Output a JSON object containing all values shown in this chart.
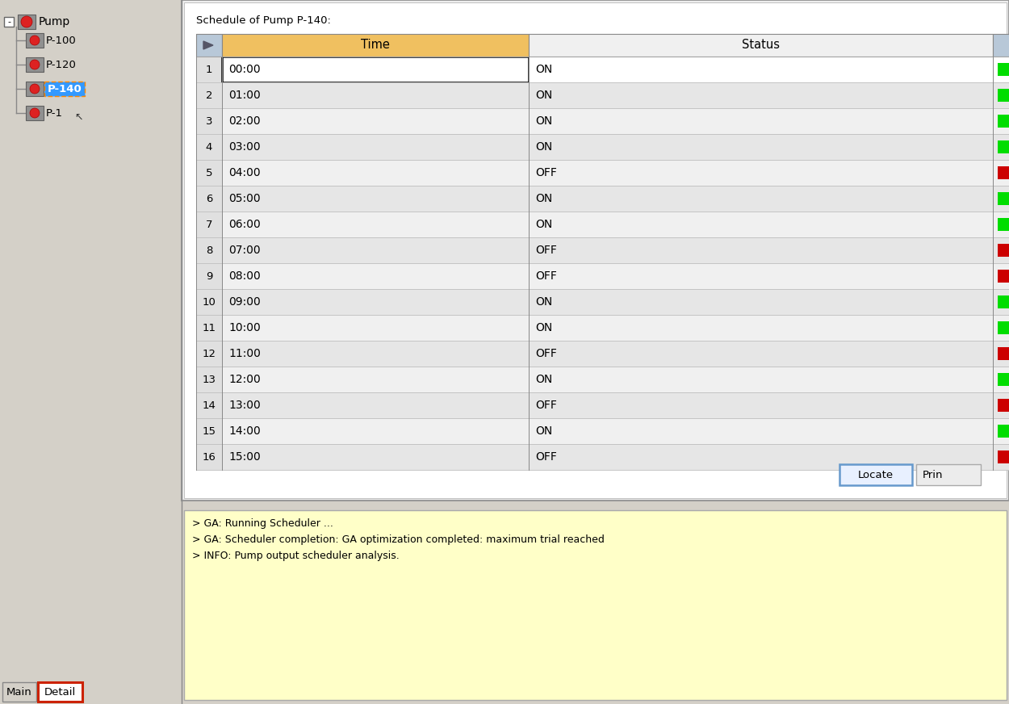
{
  "title": "Schedule of Pump P-140:",
  "rows": [
    {
      "num": 1,
      "time": "00:00",
      "status": "ON",
      "color": "green"
    },
    {
      "num": 2,
      "time": "01:00",
      "status": "ON",
      "color": "green"
    },
    {
      "num": 3,
      "time": "02:00",
      "status": "ON",
      "color": "green"
    },
    {
      "num": 4,
      "time": "03:00",
      "status": "ON",
      "color": "green"
    },
    {
      "num": 5,
      "time": "04:00",
      "status": "OFF",
      "color": "red"
    },
    {
      "num": 6,
      "time": "05:00",
      "status": "ON",
      "color": "green"
    },
    {
      "num": 7,
      "time": "06:00",
      "status": "ON",
      "color": "green"
    },
    {
      "num": 8,
      "time": "07:00",
      "status": "OFF",
      "color": "red"
    },
    {
      "num": 9,
      "time": "08:00",
      "status": "OFF",
      "color": "red"
    },
    {
      "num": 10,
      "time": "09:00",
      "status": "ON",
      "color": "green"
    },
    {
      "num": 11,
      "time": "10:00",
      "status": "ON",
      "color": "green"
    },
    {
      "num": 12,
      "time": "11:00",
      "status": "OFF",
      "color": "red"
    },
    {
      "num": 13,
      "time": "12:00",
      "status": "ON",
      "color": "green"
    },
    {
      "num": 14,
      "time": "13:00",
      "status": "OFF",
      "color": "red"
    },
    {
      "num": 15,
      "time": "14:00",
      "status": "ON",
      "color": "green"
    },
    {
      "num": 16,
      "time": "15:00",
      "status": "OFF",
      "color": "red"
    }
  ],
  "tree_items": [
    {
      "label": "Pump",
      "level": 0,
      "selected": false
    },
    {
      "label": "P-100",
      "level": 1,
      "selected": false
    },
    {
      "label": "P-120",
      "level": 1,
      "selected": false
    },
    {
      "label": "P-140",
      "level": 1,
      "selected": true
    },
    {
      "label": "P-1",
      "level": 1,
      "selected": false
    }
  ],
  "log_lines": [
    "> GA: Running Scheduler ...",
    "> GA: Scheduler completion: GA optimization completed: maximum trial reached",
    "> INFO: Pump output scheduler analysis."
  ],
  "tab_main": "Main",
  "tab_detail": "Detail",
  "bg_color": "#d4d0c8",
  "table_header_orange": "#f0c060",
  "table_header_gray": "#e8e8e8",
  "row_odd": "#f0f0f0",
  "row_even": "#e6e6e6",
  "row0_bg": "#ffffff",
  "log_bg": "#ffffc8",
  "tree_sel_bg": "#3399ff",
  "tree_sel_fg": "#ffffff",
  "green_ind": "#00dd00",
  "red_ind": "#cc0000",
  "locate_btn_bg": "#e8f0ff",
  "locate_btn_border": "#6699cc",
  "right_panel_bg": "#f0f0f0",
  "white": "#ffffff",
  "panel_border": "#999999",
  "cell_border": "#cccccc",
  "tab_detail_border": "#cc2200"
}
